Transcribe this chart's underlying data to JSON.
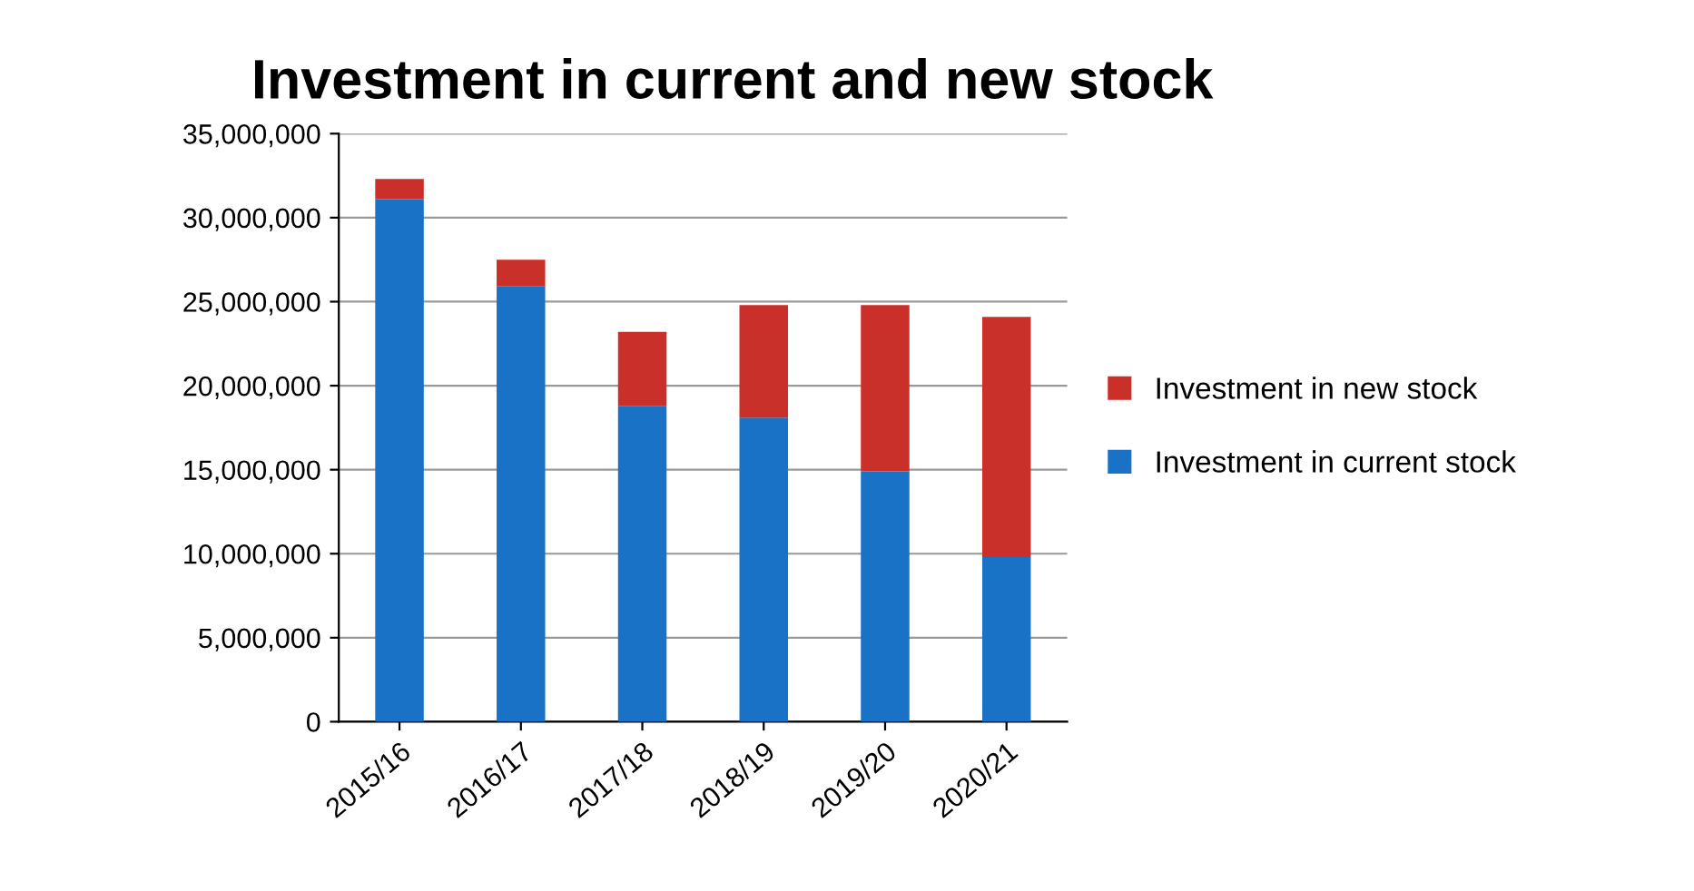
{
  "chart_data": {
    "type": "bar",
    "title": "Investment in current and new stock",
    "stacked": true,
    "categories": [
      "2015/16",
      "2016/17",
      "2017/18",
      "2018/19",
      "2019/20",
      "2020/21"
    ],
    "series": [
      {
        "name": "Investment in current stock",
        "color": "#1a72c6",
        "values": [
          31100000,
          25900000,
          18800000,
          18100000,
          14900000,
          9800000
        ]
      },
      {
        "name": "Investment in new stock",
        "color": "#c9302a",
        "values": [
          1200000,
          1600000,
          4400000,
          6700000,
          9900000,
          14300000
        ]
      }
    ],
    "ylim": [
      0,
      35000000
    ],
    "yticks": [
      {
        "value": 0,
        "label": "0"
      },
      {
        "value": 5000000,
        "label": "5,000,000"
      },
      {
        "value": 10000000,
        "label": "10,000,000"
      },
      {
        "value": 15000000,
        "label": "15,000,000"
      },
      {
        "value": 20000000,
        "label": "20,000,000"
      },
      {
        "value": 25000000,
        "label": "25,000,000"
      },
      {
        "value": 30000000,
        "label": "30,000,000"
      },
      {
        "value": 35000000,
        "label": "35,000,000"
      }
    ],
    "grid": "y",
    "legend": "right"
  }
}
